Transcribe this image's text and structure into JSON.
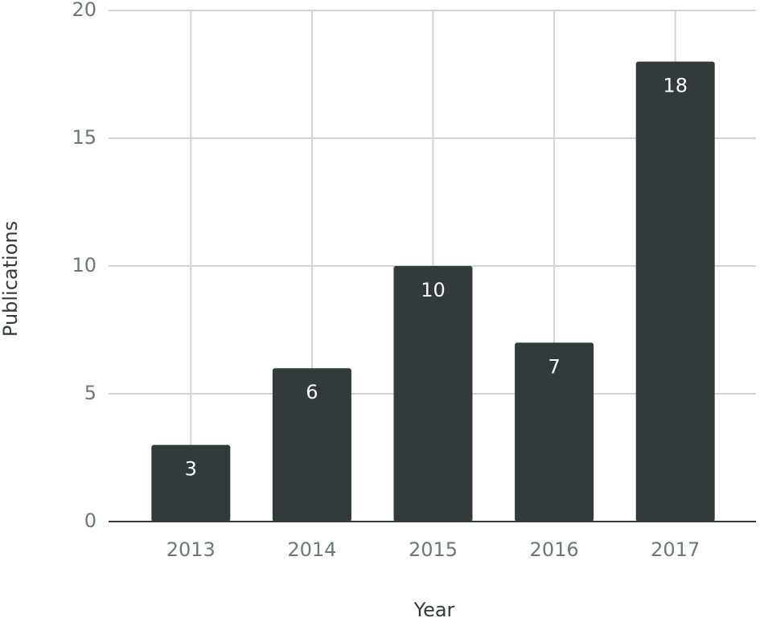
{
  "chart_data": {
    "type": "bar",
    "categories": [
      "2013",
      "2014",
      "2015",
      "2016",
      "2017"
    ],
    "values": [
      3,
      6,
      10,
      7,
      18
    ],
    "color": "#323a3b",
    "value_label_color": "#ffffff",
    "xlabel": "Year",
    "ylabel": "Publications",
    "ylim": [
      0,
      20
    ],
    "yticks": [
      0,
      5,
      10,
      15,
      20
    ],
    "grid": true
  }
}
